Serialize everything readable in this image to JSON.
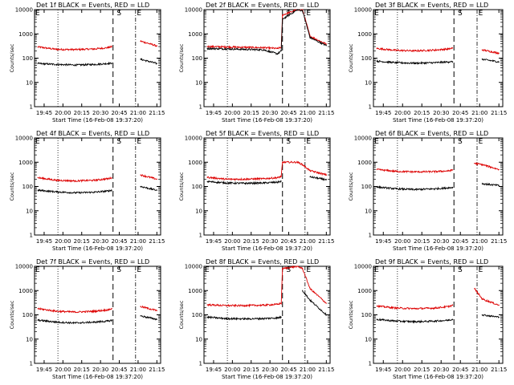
{
  "colors": {
    "events": "#000000",
    "lld": "#dd0000",
    "background": "#ffffff",
    "axis": "#000000"
  },
  "x_tick_labels": [
    "19:45",
    "20:00",
    "20:15",
    "20:30",
    "20:45",
    "21:00",
    "21:15"
  ],
  "y_tick_labels": [
    "1",
    "10",
    "100",
    "1000",
    "10000"
  ],
  "chart_data": [
    {
      "type": "line",
      "title": "Det 1f BLACK = Events, RED = LLD",
      "xlabel": "Start Time (16-Feb-08 19:37:20)",
      "ylabel": "Counts/sec",
      "y_scale": "log",
      "ylim": [
        1,
        10000
      ],
      "x": [
        "19:40",
        "19:55",
        "20:10",
        "20:25",
        "20:36",
        "20:39",
        "20:40",
        "20:52",
        "20:56",
        "21:02",
        "21:15"
      ],
      "series": [
        {
          "values": [
            290,
            230,
            225,
            240,
            270,
            300,
            null,
            null,
            null,
            500,
            320
          ]
        },
        {
          "values": [
            60,
            55,
            52,
            55,
            60,
            62,
            null,
            null,
            null,
            90,
            60
          ]
        }
      ],
      "annotations": [
        {
          "text": "E",
          "x": "19:38"
        },
        {
          "text": "S",
          "x": "20:43"
        },
        {
          "text": "E",
          "x": "20:59"
        }
      ]
    },
    {
      "type": "line",
      "title": "Det 2f BLACK = Events, RED = LLD",
      "xlabel": "Start Time (16-Feb-08 19:37:20)",
      "ylabel": "Counts/sec",
      "y_scale": "log",
      "ylim": [
        1,
        10000
      ],
      "x": [
        "19:40",
        "19:55",
        "20:10",
        "20:25",
        "20:36",
        "20:39",
        "20:40",
        "20:52",
        "20:56",
        "21:02",
        "21:15"
      ],
      "series": [
        {
          "values": [
            300,
            290,
            280,
            270,
            250,
            280,
            6000,
            10000,
            10000,
            800,
            380
          ]
        },
        {
          "values": [
            250,
            240,
            230,
            220,
            150,
            200,
            4000,
            10000,
            9000,
            700,
            330
          ]
        }
      ],
      "annotations": [
        {
          "text": "S",
          "x": "20:43"
        },
        {
          "text": "E",
          "x": "20:59"
        }
      ]
    },
    {
      "type": "line",
      "title": "Det 3f BLACK = Events, RED = LLD",
      "xlabel": "Start Time (16-Feb-08 19:37:20)",
      "ylabel": "Counts/sec",
      "y_scale": "log",
      "ylim": [
        1,
        10000
      ],
      "x": [
        "19:40",
        "19:55",
        "20:10",
        "20:25",
        "20:36",
        "20:39",
        "20:40",
        "20:52",
        "20:56",
        "21:02",
        "21:15"
      ],
      "series": [
        {
          "values": [
            250,
            210,
            200,
            215,
            240,
            260,
            null,
            null,
            null,
            220,
            160
          ]
        },
        {
          "values": [
            75,
            65,
            62,
            65,
            70,
            72,
            null,
            null,
            null,
            90,
            70
          ]
        }
      ],
      "annotations": [
        {
          "text": "E",
          "x": "19:38"
        },
        {
          "text": "S",
          "x": "20:43"
        },
        {
          "text": "E",
          "x": "20:59"
        }
      ]
    },
    {
      "type": "line",
      "title": "Det 4f BLACK = Events, RED = LLD",
      "xlabel": "Start Time (16-Feb-08 19:37:20)",
      "ylabel": "Counts/sec",
      "y_scale": "log",
      "ylim": [
        1,
        10000
      ],
      "x": [
        "19:40",
        "19:55",
        "20:10",
        "20:25",
        "20:36",
        "20:39",
        "20:40",
        "20:52",
        "20:56",
        "21:02",
        "21:15"
      ],
      "series": [
        {
          "values": [
            230,
            180,
            170,
            180,
            210,
            230,
            null,
            null,
            null,
            300,
            200
          ]
        },
        {
          "values": [
            70,
            60,
            55,
            58,
            65,
            70,
            null,
            null,
            null,
            100,
            70
          ]
        }
      ],
      "annotations": [
        {
          "text": "E",
          "x": "19:38"
        },
        {
          "text": "S",
          "x": "20:43"
        },
        {
          "text": "E",
          "x": "20:59"
        }
      ]
    },
    {
      "type": "line",
      "title": "Det 5f BLACK = Events, RED = LLD",
      "xlabel": "Start Time (16-Feb-08 19:37:20)",
      "ylabel": "Counts/sec",
      "y_scale": "log",
      "ylim": [
        1,
        10000
      ],
      "x": [
        "19:40",
        "19:55",
        "20:10",
        "20:25",
        "20:36",
        "20:39",
        "20:40",
        "20:52",
        "20:56",
        "21:02",
        "21:15"
      ],
      "series": [
        {
          "values": [
            240,
            200,
            200,
            210,
            230,
            260,
            1000,
            1000,
            800,
            450,
            300
          ]
        },
        {
          "values": [
            160,
            140,
            135,
            140,
            150,
            165,
            null,
            null,
            null,
            250,
            190
          ]
        }
      ],
      "annotations": [
        {
          "text": "S",
          "x": "20:43"
        },
        {
          "text": "E",
          "x": "20:59"
        }
      ]
    },
    {
      "type": "line",
      "title": "Det 6f BLACK = Events, RED = LLD",
      "xlabel": "Start Time (16-Feb-08 19:37:20)",
      "ylabel": "Counts/sec",
      "y_scale": "log",
      "ylim": [
        1,
        10000
      ],
      "x": [
        "19:40",
        "19:55",
        "20:10",
        "20:25",
        "20:36",
        "20:39",
        "20:40",
        "20:52",
        "20:56",
        "21:02",
        "21:15"
      ],
      "series": [
        {
          "values": [
            500,
            420,
            400,
            410,
            440,
            480,
            null,
            null,
            900,
            800,
            500
          ]
        },
        {
          "values": [
            95,
            80,
            75,
            80,
            88,
            92,
            null,
            null,
            null,
            130,
            110
          ]
        }
      ],
      "annotations": [
        {
          "text": "E",
          "x": "19:38"
        },
        {
          "text": "S",
          "x": "20:43"
        },
        {
          "text": "E",
          "x": "20:59"
        }
      ]
    },
    {
      "type": "line",
      "title": "Det 7f BLACK = Events, RED = LLD",
      "xlabel": "Start Time (16-Feb-08 19:37:20)",
      "ylabel": "Counts/sec",
      "y_scale": "log",
      "ylim": [
        1,
        10000
      ],
      "x": [
        "19:40",
        "19:55",
        "20:10",
        "20:25",
        "20:36",
        "20:39",
        "20:40",
        "20:52",
        "20:56",
        "21:02",
        "21:15"
      ],
      "series": [
        {
          "values": [
            180,
            140,
            130,
            140,
            160,
            180,
            null,
            null,
            null,
            220,
            150
          ]
        },
        {
          "values": [
            60,
            50,
            46,
            50,
            55,
            60,
            null,
            null,
            null,
            90,
            65
          ]
        }
      ],
      "annotations": [
        {
          "text": "E",
          "x": "19:38"
        },
        {
          "text": "S",
          "x": "20:43"
        },
        {
          "text": "E",
          "x": "20:59"
        }
      ]
    },
    {
      "type": "line",
      "title": "Det 8f BLACK = Events, RED = LLD",
      "xlabel": "Start Time (16-Feb-08 19:37:20)",
      "ylabel": "Counts/sec",
      "y_scale": "log",
      "ylim": [
        1,
        10000
      ],
      "x": [
        "19:40",
        "19:55",
        "20:10",
        "20:25",
        "20:36",
        "20:39",
        "20:40",
        "20:52",
        "20:56",
        "21:02",
        "21:15"
      ],
      "series": [
        {
          "values": [
            260,
            240,
            240,
            250,
            270,
            300,
            8000,
            10000,
            8000,
            1200,
            300
          ]
        },
        {
          "values": [
            80,
            70,
            68,
            70,
            75,
            80,
            null,
            null,
            1000,
            400,
            100
          ]
        }
      ],
      "annotations": [
        {
          "text": "E",
          "x": "19:38"
        },
        {
          "text": "S",
          "x": "20:43"
        },
        {
          "text": "E",
          "x": "20:59"
        }
      ]
    },
    {
      "type": "line",
      "title": "Det 9f BLACK = Events, RED = LLD",
      "xlabel": "Start Time (16-Feb-08 19:37:20)",
      "ylabel": "Counts/sec",
      "y_scale": "log",
      "ylim": [
        1,
        10000
      ],
      "x": [
        "19:40",
        "19:55",
        "20:10",
        "20:25",
        "20:36",
        "20:39",
        "20:40",
        "20:52",
        "20:56",
        "21:02",
        "21:15"
      ],
      "series": [
        {
          "values": [
            230,
            190,
            180,
            190,
            220,
            250,
            null,
            null,
            1200,
            450,
            250
          ]
        },
        {
          "values": [
            65,
            55,
            52,
            55,
            60,
            65,
            null,
            null,
            null,
            100,
            80
          ]
        }
      ],
      "annotations": [
        {
          "text": "E",
          "x": "19:38"
        },
        {
          "text": "S",
          "x": "20:43"
        },
        {
          "text": "E",
          "x": "20:59"
        }
      ]
    }
  ]
}
